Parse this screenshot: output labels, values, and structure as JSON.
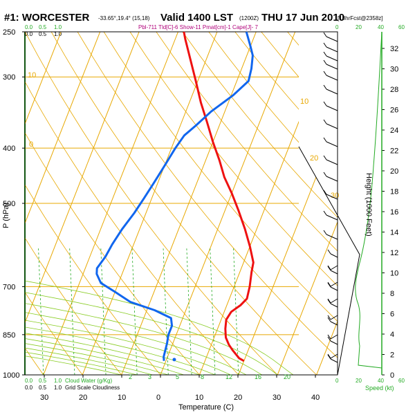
{
  "header": {
    "station": "#1: WORCESTER",
    "coords": "-33.65°,19.4° (15,18)",
    "valid": "Valid 1400 LST",
    "utc": "(1200Z)",
    "date": "THU 17 Jun 2010",
    "forecast": "[18hrFcst@2358z]",
    "indices": "Pbl-711 Tld[C]-6 Show-11 Pmat[cm]-1 Cape[J]- 7"
  },
  "left_strip": {
    "top_labels": [
      "0.0",
      "0.5",
      "1.0"
    ],
    "bottom_caption_1": "Cloud Water (g/Kg)",
    "bottom_caption_2": "Grid Scale Cloudiness"
  },
  "right_panel": {
    "height_label": "Height (1000 Feet)",
    "speed_label": "Speed (kt)",
    "speed_ticks": [
      "0",
      "20",
      "40",
      "60"
    ],
    "top_ticks": [
      "0",
      "20",
      "40",
      "60"
    ]
  },
  "chart_data": {
    "type": "line",
    "title": "",
    "xlabel": "Temperature (C)",
    "ylabel": "P (hPa)",
    "x_ticks": [
      "30",
      "20",
      "10",
      "0",
      "10",
      "20",
      "30",
      "40"
    ],
    "x_tick_values": [
      -30,
      -20,
      -10,
      0,
      10,
      20,
      30,
      40
    ],
    "y_ticks": [
      "250",
      "300",
      "400",
      "500",
      "700",
      "850",
      "1000"
    ],
    "y_tick_values": [
      250,
      300,
      400,
      500,
      700,
      850,
      1000
    ],
    "height_ticks": [
      "0",
      "2",
      "4",
      "6",
      "8",
      "10",
      "12",
      "14",
      "16",
      "18",
      "20",
      "22",
      "24",
      "26",
      "28",
      "30",
      "32"
    ],
    "isotherm_labels": [
      "10",
      "0",
      "10",
      "20",
      "30"
    ],
    "mixing_ratio_labels": [
      "2",
      "3",
      "5",
      "8",
      "12",
      "16",
      "20"
    ],
    "series": [
      {
        "name": "Temperature",
        "color": "#ee1111",
        "points": [
          [
            20.0,
            945
          ],
          [
            18.5,
            935
          ],
          [
            16.0,
            905
          ],
          [
            14.5,
            885
          ],
          [
            13.0,
            860
          ],
          [
            12.0,
            830
          ],
          [
            11.3,
            800
          ],
          [
            11.8,
            775
          ],
          [
            13.5,
            755
          ],
          [
            14.5,
            735
          ],
          [
            14.0,
            700
          ],
          [
            13.0,
            660
          ],
          [
            12.5,
            635
          ],
          [
            10.0,
            595
          ],
          [
            7.0,
            555
          ],
          [
            3.5,
            515
          ],
          [
            0.0,
            480
          ],
          [
            -3.5,
            450
          ],
          [
            -6.5,
            420
          ],
          [
            -10.0,
            390
          ],
          [
            -13.5,
            360
          ],
          [
            -17.0,
            333
          ],
          [
            -20.5,
            305
          ],
          [
            -24.0,
            280
          ],
          [
            -27.5,
            257
          ],
          [
            -28.5,
            250
          ]
        ]
      },
      {
        "name": "Dew Point",
        "color": "#1166ee",
        "points": [
          [
            -0.5,
            945
          ],
          [
            -1.0,
            930
          ],
          [
            -1.5,
            880
          ],
          [
            -2.0,
            850
          ],
          [
            -2.0,
            820
          ],
          [
            -3.0,
            795
          ],
          [
            -8.0,
            770
          ],
          [
            -15.0,
            745
          ],
          [
            -20.0,
            715
          ],
          [
            -24.5,
            690
          ],
          [
            -26.5,
            665
          ],
          [
            -27.0,
            650
          ],
          [
            -26.0,
            620
          ],
          [
            -25.5,
            590
          ],
          [
            -24.5,
            555
          ],
          [
            -23.0,
            520
          ],
          [
            -22.0,
            490
          ],
          [
            -21.0,
            460
          ],
          [
            -20.0,
            430
          ],
          [
            -19.0,
            400
          ],
          [
            -18.0,
            380
          ],
          [
            -16.0,
            365
          ],
          [
            -13.5,
            345
          ],
          [
            -9.5,
            323
          ],
          [
            -7.0,
            305
          ],
          [
            -7.5,
            290
          ],
          [
            -8.5,
            275
          ],
          [
            -10.0,
            265
          ],
          [
            -12.5,
            250
          ]
        ]
      }
    ],
    "parcel_point": {
      "temperature": 2.0,
      "pressure": 940
    },
    "xlim": [
      -30,
      45
    ],
    "ylim": [
      1000,
      250
    ]
  }
}
